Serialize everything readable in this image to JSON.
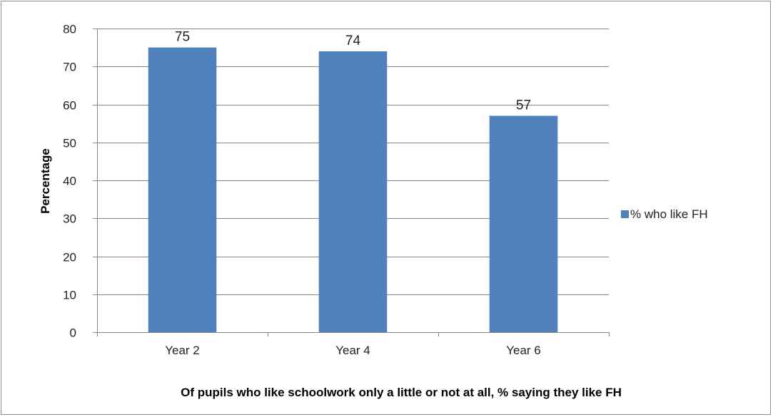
{
  "chart_data": {
    "type": "bar",
    "categories": [
      "Year 2",
      "Year 4",
      "Year 6"
    ],
    "series": [
      {
        "name": "% who like FH",
        "values": [
          75,
          74,
          57
        ],
        "color": "#4f81bd"
      }
    ],
    "data_labels": [
      "75",
      "74",
      "57"
    ],
    "title": "",
    "xlabel": "Of pupils who like schoolwork only a little or not at all, % saying they like FH",
    "ylabel": "Percentage",
    "ylim": [
      0,
      80
    ],
    "yticks": [
      "0",
      "10",
      "20",
      "30",
      "40",
      "50",
      "60",
      "70",
      "80"
    ],
    "grid": true,
    "legend_position": "right",
    "colors": {
      "bar": "#4f81bd",
      "gridline": "#868686",
      "axis": "#868686",
      "border": "#8c8c8c"
    }
  }
}
